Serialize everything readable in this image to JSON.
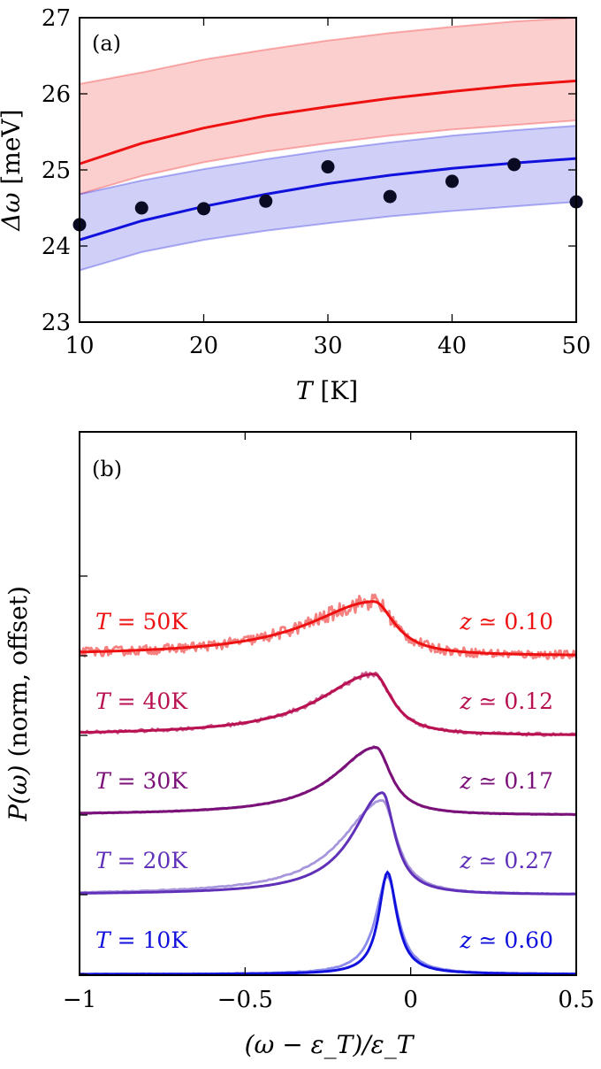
{
  "chart_data": [
    {
      "type": "scatter",
      "panel_label": "(a)",
      "xlabel_var": "T",
      "xlabel_unit": "[K]",
      "ylabel_var": "Δω",
      "ylabel_unit": "[meV]",
      "xlim": [
        10,
        50
      ],
      "ylim": [
        23,
        27
      ],
      "xticks": [
        10,
        20,
        30,
        40,
        50
      ],
      "yticks": [
        23,
        24,
        25,
        26,
        27
      ],
      "grid": false,
      "colors": {
        "red": "#ee1111",
        "blue": "#1111dd",
        "points": "#0a0a23"
      },
      "series": [
        {
          "kind": "curve",
          "color": "red",
          "x": [
            10,
            15,
            20,
            25,
            30,
            35,
            40,
            45,
            50
          ],
          "y": [
            25.08,
            25.35,
            25.55,
            25.71,
            25.83,
            25.94,
            26.03,
            26.11,
            26.17
          ]
        },
        {
          "kind": "band",
          "color": "red",
          "x": [
            10,
            11,
            15,
            20,
            25,
            30,
            35,
            40,
            45,
            50
          ],
          "lower": [
            24.68,
            24.73,
            24.92,
            25.1,
            25.24,
            25.35,
            25.45,
            25.53,
            25.59,
            25.65
          ],
          "upper": [
            26.13,
            26.16,
            26.28,
            26.45,
            26.58,
            26.7,
            26.8,
            26.88,
            26.95,
            27.0
          ]
        },
        {
          "kind": "curve",
          "color": "blue",
          "x": [
            10,
            15,
            20,
            25,
            30,
            35,
            40,
            45,
            50
          ],
          "y": [
            24.08,
            24.33,
            24.52,
            24.68,
            24.82,
            24.93,
            25.02,
            25.09,
            25.15
          ]
        },
        {
          "kind": "band",
          "color": "blue",
          "x": [
            10,
            15,
            20,
            25,
            30,
            35,
            40,
            45,
            50
          ],
          "lower": [
            23.68,
            23.92,
            24.08,
            24.2,
            24.3,
            24.39,
            24.46,
            24.52,
            24.58
          ],
          "upper": [
            24.68,
            24.86,
            25.01,
            25.14,
            25.26,
            25.36,
            25.45,
            25.52,
            25.58
          ]
        },
        {
          "kind": "points",
          "color": "points",
          "x": [
            10,
            15,
            20,
            25,
            30,
            35,
            40,
            45,
            50
          ],
          "y": [
            24.28,
            24.5,
            24.49,
            24.59,
            25.04,
            24.65,
            24.85,
            25.07,
            24.58
          ]
        }
      ]
    },
    {
      "type": "line",
      "panel_label": "(b)",
      "xlabel": "(ω − ε_T)/ε_T",
      "ylabel_var": "P(ω)",
      "ylabel_rest": "(norm, offset)",
      "xlim": [
        -1,
        0.5
      ],
      "xticks": [
        -1,
        -0.5,
        0,
        0.5
      ],
      "xtick_labels": [
        "−1",
        "−0.5",
        "0",
        "0.5"
      ],
      "grid": false,
      "curves": [
        {
          "temp_var": "T",
          "temp_label": "= 50K",
          "z_var": "z",
          "z_label": "≃ 0.10",
          "color": "#ee1111",
          "data_color": "#f58080",
          "offset": 4,
          "peak_x": -0.11,
          "height": 0.68,
          "width_left": 0.24,
          "width_right": 0.075,
          "noise": 0.09
        },
        {
          "temp_var": "T",
          "temp_label": "= 40K",
          "z_var": "z",
          "z_label": "≃ 0.12",
          "color": "#b81050",
          "data_color": "#cc6090",
          "offset": 3,
          "peak_x": -0.11,
          "height": 0.77,
          "width_left": 0.2,
          "width_right": 0.065,
          "noise": 0.03
        },
        {
          "temp_var": "T",
          "temp_label": "= 30K",
          "z_var": "z",
          "z_label": "≃ 0.17",
          "color": "#7a1078",
          "data_color": "#a270b6",
          "offset": 2,
          "peak_x": -0.105,
          "height": 0.85,
          "width_left": 0.15,
          "width_right": 0.055,
          "noise": 0.012
        },
        {
          "temp_var": "T",
          "temp_label": "= 20K",
          "z_var": "z",
          "z_label": "≃ 0.27",
          "color": "#6030b8",
          "data_color": "#a896dc",
          "offset": 1,
          "peak_x": -0.085,
          "height": 1.28,
          "width_left": 0.11,
          "width_right": 0.045,
          "noise": 0.008,
          "second_height": 1.18
        },
        {
          "temp_var": "T",
          "temp_label": "= 10K",
          "z_var": "z",
          "z_label": "≃ 0.60",
          "color": "#1111dd",
          "data_color": "#8c8cec",
          "offset": 0,
          "peak_x": -0.07,
          "height": 1.28,
          "width_left": 0.032,
          "width_right": 0.034,
          "noise": 0.006,
          "second_height": 1.23
        }
      ]
    }
  ]
}
